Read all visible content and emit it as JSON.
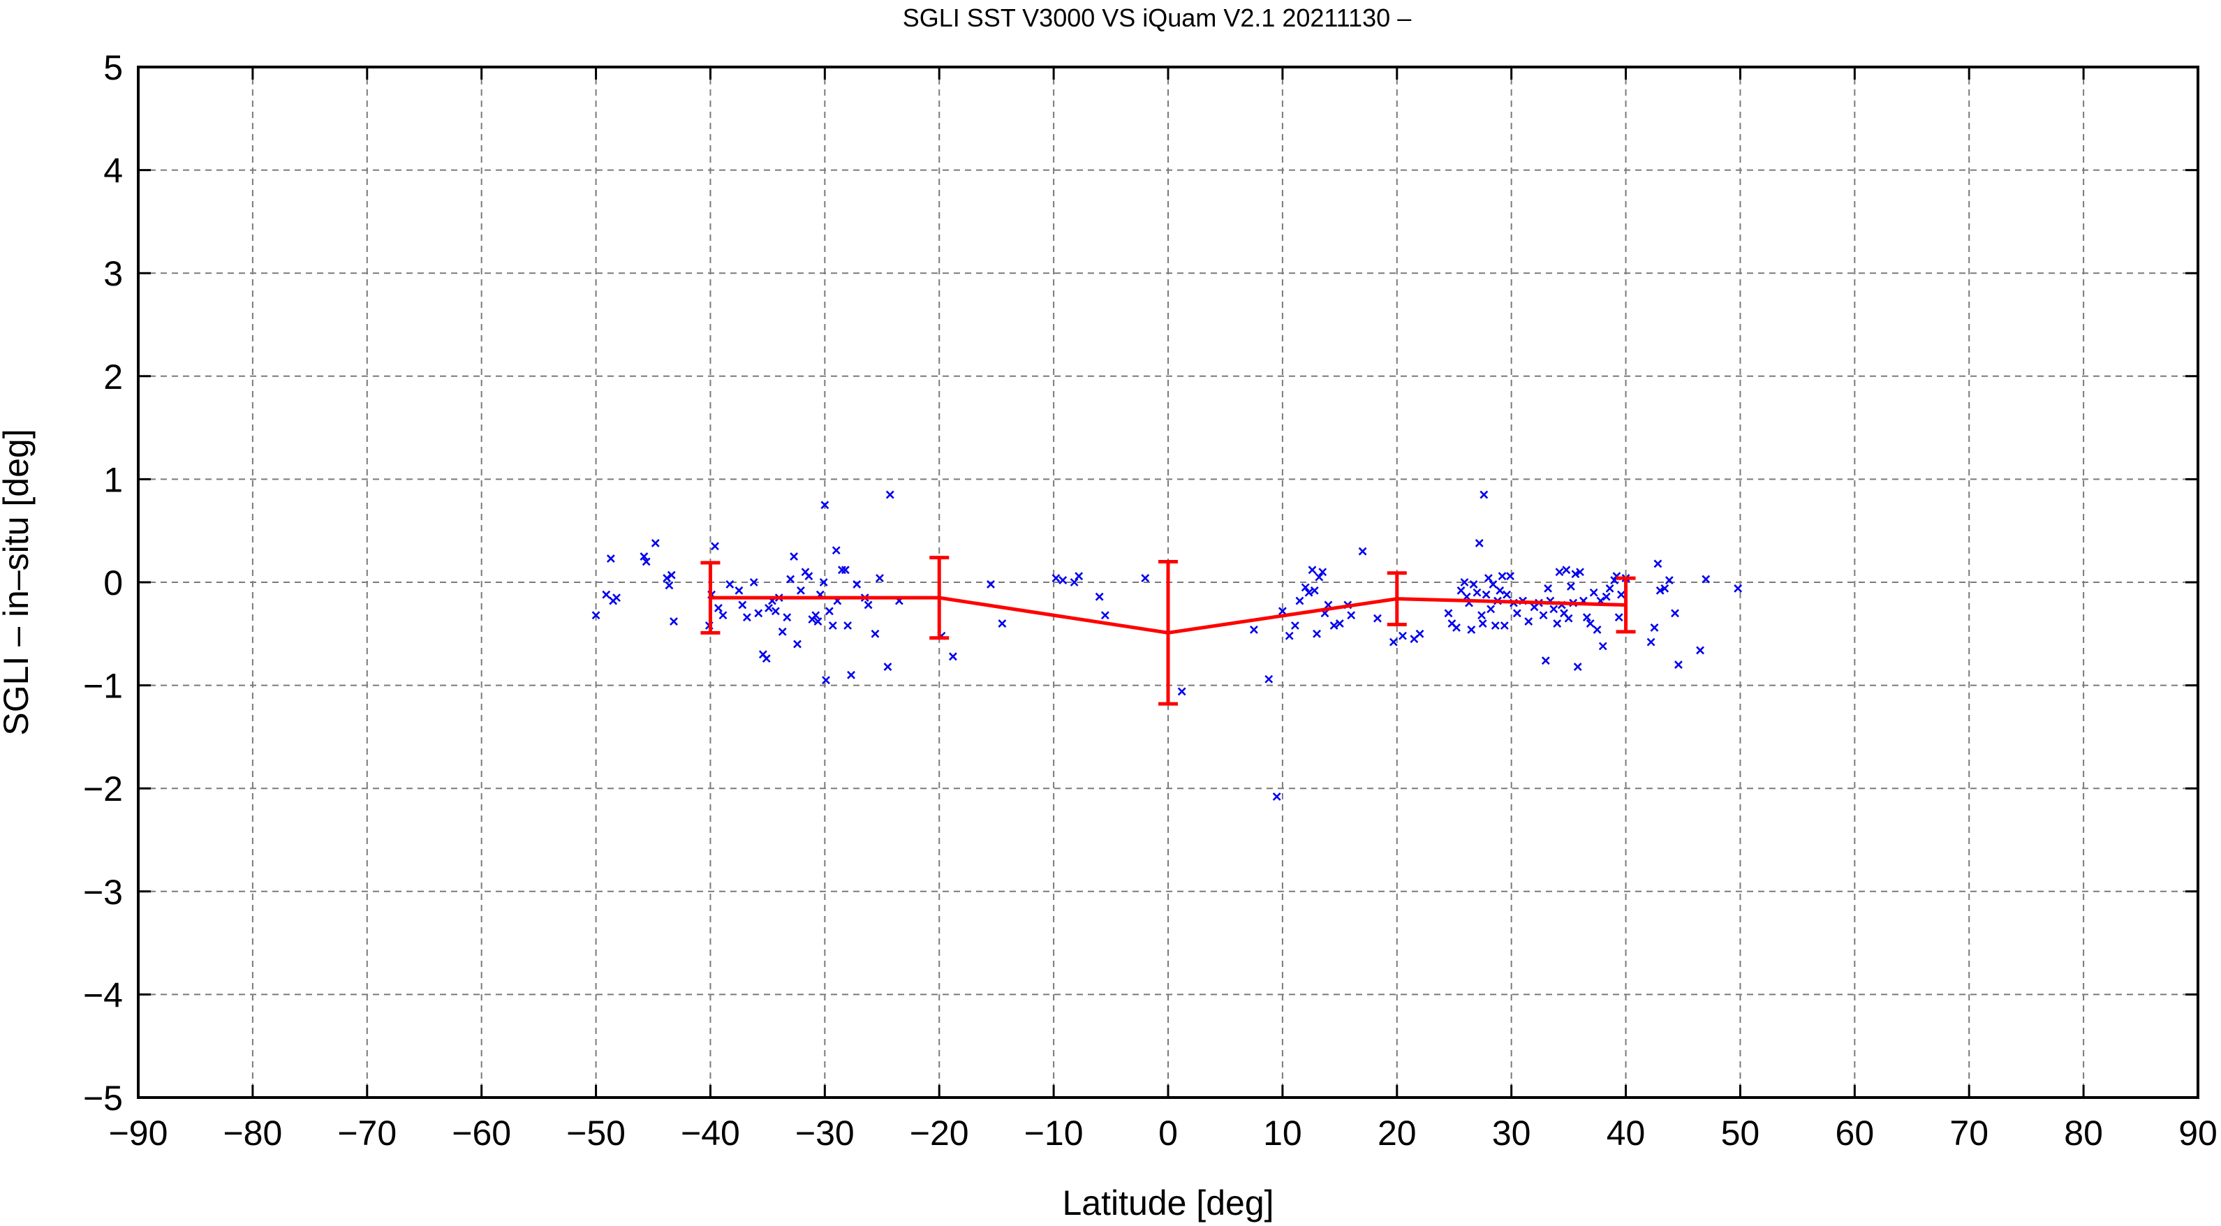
{
  "chart_data": {
    "type": "scatter",
    "title": "SGLI SST V3000 VS iQuam V2.1 20211130 –",
    "xlabel": "Latitude [deg]",
    "ylabel": "SGLI – in–situ [deg]",
    "xlim": [
      -90,
      90
    ],
    "ylim": [
      -5,
      5
    ],
    "x_ticks": [
      -90,
      -80,
      -70,
      -60,
      -50,
      -40,
      -30,
      -20,
      -10,
      0,
      10,
      20,
      30,
      40,
      50,
      60,
      70,
      80,
      90
    ],
    "y_ticks": [
      -5,
      -4,
      -3,
      -2,
      -1,
      0,
      1,
      2,
      3,
      4,
      5
    ],
    "x_tick_labels": [
      "−90",
      "−80",
      "−70",
      "−60",
      "−50",
      "−40",
      "−30",
      "−20",
      "−10",
      "0",
      "10",
      "20",
      "30",
      "40",
      "50",
      "60",
      "70",
      "80",
      "90"
    ],
    "y_tick_labels": [
      "−5",
      "−4",
      "−3",
      "−2",
      "−1",
      "0",
      "1",
      "2",
      "3",
      "4",
      "5"
    ],
    "grid": true,
    "legend": "none",
    "colors": {
      "points": "#0000ee",
      "mean": "#ff0000",
      "grid": "#7a7a7a"
    },
    "scatter_points": [
      [
        -50.0,
        -0.32
      ],
      [
        -49.1,
        -0.12
      ],
      [
        -48.7,
        0.23
      ],
      [
        -48.5,
        -0.18
      ],
      [
        -48.2,
        -0.15
      ],
      [
        -45.8,
        0.25
      ],
      [
        -45.6,
        0.2
      ],
      [
        -44.8,
        0.38
      ],
      [
        -43.8,
        0.04
      ],
      [
        -43.6,
        -0.03
      ],
      [
        -43.4,
        0.07
      ],
      [
        -43.2,
        -0.38
      ],
      [
        -40.1,
        -0.42
      ],
      [
        -39.9,
        -0.12
      ],
      [
        -39.6,
        0.35
      ],
      [
        -39.3,
        -0.25
      ],
      [
        -38.9,
        -0.32
      ],
      [
        -38.3,
        -0.02
      ],
      [
        -37.5,
        -0.08
      ],
      [
        -37.2,
        -0.22
      ],
      [
        -36.8,
        -0.34
      ],
      [
        -36.2,
        0.0
      ],
      [
        -35.8,
        -0.3
      ],
      [
        -35.4,
        -0.7
      ],
      [
        -35.1,
        -0.74
      ],
      [
        -34.9,
        -0.25
      ],
      [
        -34.6,
        -0.18
      ],
      [
        -34.3,
        -0.28
      ],
      [
        -34.0,
        -0.15
      ],
      [
        -33.7,
        -0.48
      ],
      [
        -33.3,
        -0.34
      ],
      [
        -33.0,
        0.03
      ],
      [
        -32.7,
        0.25
      ],
      [
        -32.4,
        -0.6
      ],
      [
        -32.1,
        -0.08
      ],
      [
        -31.7,
        0.1
      ],
      [
        -31.4,
        0.06
      ],
      [
        -31.1,
        -0.36
      ],
      [
        -30.8,
        -0.32
      ],
      [
        -30.6,
        -0.38
      ],
      [
        -30.4,
        -0.12
      ],
      [
        -30.1,
        0.0
      ],
      [
        -30.0,
        0.75
      ],
      [
        -29.9,
        -0.95
      ],
      [
        -29.6,
        -0.28
      ],
      [
        -29.3,
        -0.42
      ],
      [
        -29.0,
        0.31
      ],
      [
        -28.9,
        -0.18
      ],
      [
        -28.5,
        0.12
      ],
      [
        -28.2,
        0.12
      ],
      [
        -28.0,
        -0.42
      ],
      [
        -27.7,
        -0.9
      ],
      [
        -27.2,
        -0.02
      ],
      [
        -26.5,
        -0.15
      ],
      [
        -26.2,
        -0.22
      ],
      [
        -25.6,
        -0.5
      ],
      [
        -25.2,
        0.04
      ],
      [
        -24.5,
        -0.82
      ],
      [
        -24.3,
        0.85
      ],
      [
        -23.5,
        -0.18
      ],
      [
        -19.8,
        -0.52
      ],
      [
        -18.8,
        -0.72
      ],
      [
        -15.5,
        -0.02
      ],
      [
        -14.5,
        -0.4
      ],
      [
        -9.8,
        0.04
      ],
      [
        -9.2,
        0.02
      ],
      [
        -8.2,
        0.0
      ],
      [
        -7.8,
        0.06
      ],
      [
        -6.0,
        -0.14
      ],
      [
        -5.5,
        -0.32
      ],
      [
        -2.0,
        0.04
      ],
      [
        1.2,
        -1.06
      ],
      [
        7.5,
        -0.46
      ],
      [
        8.8,
        -0.94
      ],
      [
        9.5,
        -2.08
      ],
      [
        10.0,
        -0.28
      ],
      [
        10.6,
        -0.52
      ],
      [
        11.1,
        -0.42
      ],
      [
        11.5,
        -0.18
      ],
      [
        12.0,
        -0.05
      ],
      [
        12.3,
        -0.1
      ],
      [
        12.6,
        0.12
      ],
      [
        12.8,
        -0.08
      ],
      [
        13.0,
        -0.5
      ],
      [
        13.2,
        0.05
      ],
      [
        13.5,
        0.1
      ],
      [
        13.7,
        -0.3
      ],
      [
        14.0,
        -0.22
      ],
      [
        14.5,
        -0.42
      ],
      [
        15.0,
        -0.4
      ],
      [
        15.7,
        -0.22
      ],
      [
        16.0,
        -0.32
      ],
      [
        17.0,
        0.3
      ],
      [
        18.3,
        -0.35
      ],
      [
        19.7,
        -0.58
      ],
      [
        20.5,
        -0.52
      ],
      [
        21.5,
        -0.55
      ],
      [
        22.0,
        -0.5
      ],
      [
        24.5,
        -0.3
      ],
      [
        24.8,
        -0.4
      ],
      [
        25.2,
        -0.44
      ],
      [
        25.6,
        -0.08
      ],
      [
        25.9,
        0.0
      ],
      [
        26.1,
        -0.14
      ],
      [
        26.3,
        -0.2
      ],
      [
        26.5,
        -0.46
      ],
      [
        26.7,
        -0.02
      ],
      [
        27.0,
        -0.1
      ],
      [
        27.2,
        0.38
      ],
      [
        27.4,
        -0.32
      ],
      [
        27.5,
        -0.4
      ],
      [
        27.6,
        0.85
      ],
      [
        27.8,
        -0.12
      ],
      [
        28.0,
        0.04
      ],
      [
        28.2,
        -0.26
      ],
      [
        28.4,
        -0.02
      ],
      [
        28.6,
        -0.42
      ],
      [
        28.8,
        -0.18
      ],
      [
        29.0,
        -0.08
      ],
      [
        29.2,
        0.06
      ],
      [
        29.4,
        -0.42
      ],
      [
        29.6,
        -0.12
      ],
      [
        29.9,
        0.06
      ],
      [
        30.2,
        -0.2
      ],
      [
        30.5,
        -0.3
      ],
      [
        31.0,
        -0.18
      ],
      [
        31.5,
        -0.38
      ],
      [
        32.0,
        -0.24
      ],
      [
        32.4,
        -0.2
      ],
      [
        32.8,
        -0.32
      ],
      [
        33.0,
        -0.76
      ],
      [
        33.2,
        -0.06
      ],
      [
        33.4,
        -0.18
      ],
      [
        33.7,
        -0.26
      ],
      [
        34.0,
        -0.4
      ],
      [
        34.2,
        0.1
      ],
      [
        34.4,
        -0.22
      ],
      [
        34.6,
        -0.3
      ],
      [
        34.8,
        0.12
      ],
      [
        35.0,
        -0.35
      ],
      [
        35.2,
        -0.04
      ],
      [
        35.4,
        -0.2
      ],
      [
        35.6,
        0.08
      ],
      [
        35.8,
        -0.82
      ],
      [
        36.0,
        0.1
      ],
      [
        36.3,
        -0.18
      ],
      [
        36.6,
        -0.34
      ],
      [
        36.9,
        -0.4
      ],
      [
        37.2,
        -0.1
      ],
      [
        37.5,
        -0.46
      ],
      [
        37.8,
        -0.18
      ],
      [
        38.0,
        -0.62
      ],
      [
        38.3,
        -0.14
      ],
      [
        38.6,
        -0.06
      ],
      [
        39.0,
        0.02
      ],
      [
        39.2,
        0.06
      ],
      [
        39.4,
        -0.34
      ],
      [
        39.6,
        -0.12
      ],
      [
        40.0,
        0.04
      ],
      [
        42.2,
        -0.58
      ],
      [
        42.5,
        -0.44
      ],
      [
        42.8,
        0.18
      ],
      [
        43.0,
        -0.08
      ],
      [
        43.4,
        -0.06
      ],
      [
        43.8,
        0.02
      ],
      [
        44.3,
        -0.3
      ],
      [
        44.6,
        -0.8
      ],
      [
        46.5,
        -0.66
      ],
      [
        47.0,
        0.03
      ],
      [
        49.8,
        -0.06
      ]
    ],
    "series": [
      {
        "x": [
          -40,
          -20,
          0,
          20,
          40
        ],
        "y": [
          -0.15,
          -0.15,
          -0.49,
          -0.16,
          -0.22
        ],
        "yerr": [
          0.34,
          0.39,
          0.69,
          0.25,
          0.26
        ]
      }
    ]
  }
}
